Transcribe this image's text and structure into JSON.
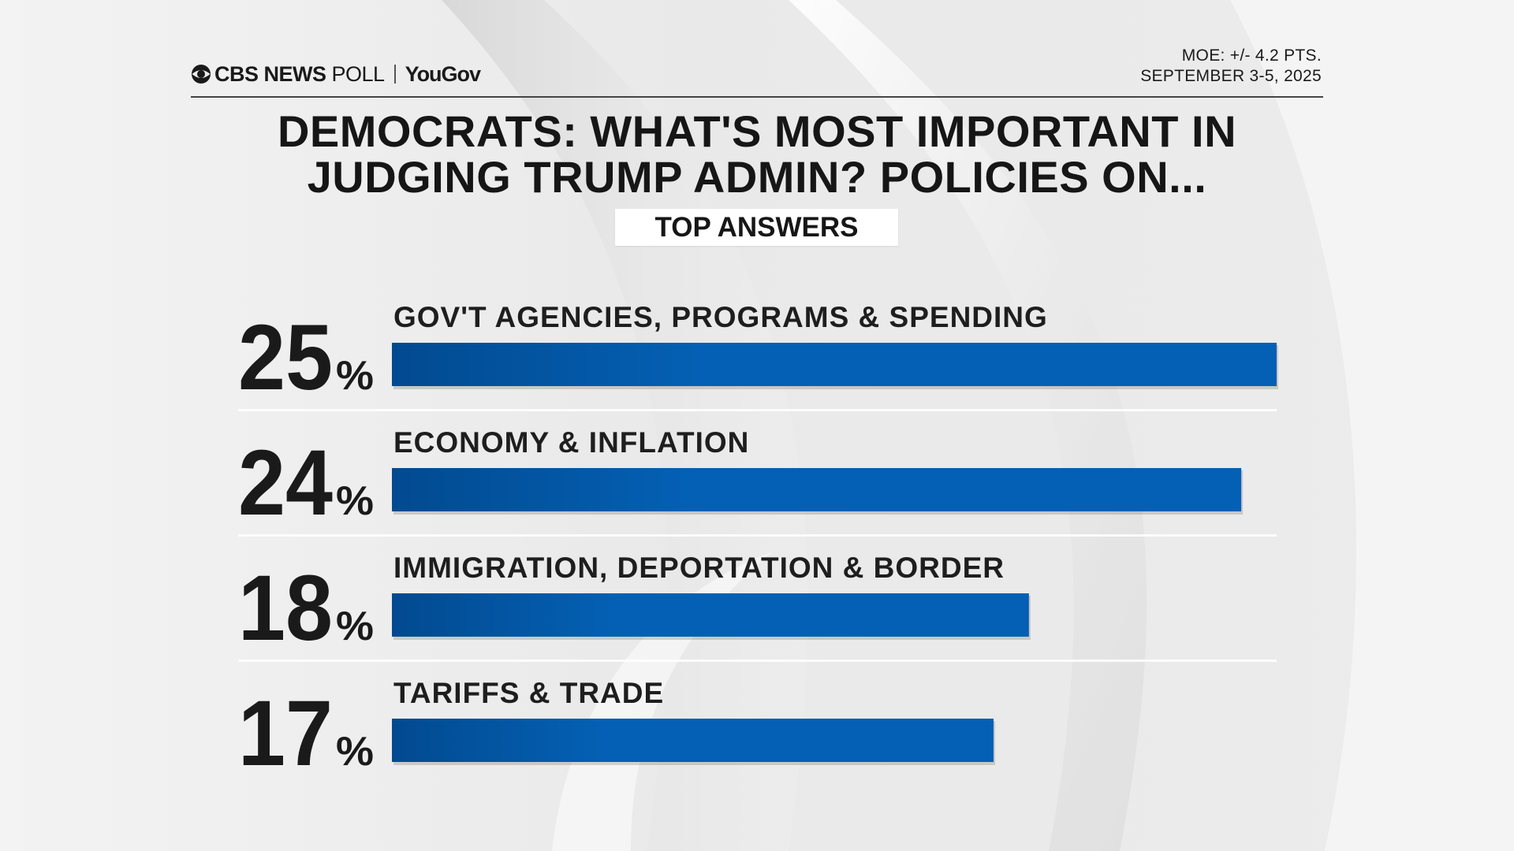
{
  "header": {
    "brand": "CBS NEWS",
    "poll": "POLL",
    "partner": "YouGov",
    "moe": "MOE: +/- 4.2 PTS.",
    "dates": "SEPTEMBER 3-5, 2025"
  },
  "title_line1": "DEMOCRATS: WHAT'S MOST IMPORTANT IN",
  "title_line2": "JUDGING TRUMP ADMIN? POLICIES ON...",
  "subtitle": "TOP ANSWERS",
  "colors": {
    "bar": "#0460b4",
    "bar_dark": "#024a90"
  },
  "chart_data": {
    "type": "bar",
    "orientation": "horizontal",
    "title": "DEMOCRATS: WHAT'S MOST IMPORTANT IN JUDGING TRUMP ADMIN? POLICIES ON...",
    "categories": [
      "GOV'T AGENCIES, PROGRAMS & SPENDING",
      "ECONOMY & INFLATION",
      "IMMIGRATION, DEPORTATION & BORDER",
      "TARIFFS & TRADE"
    ],
    "values": [
      25,
      24,
      18,
      17
    ],
    "unit": "%",
    "xlim": [
      0,
      25
    ],
    "grid": false,
    "legend": false
  }
}
